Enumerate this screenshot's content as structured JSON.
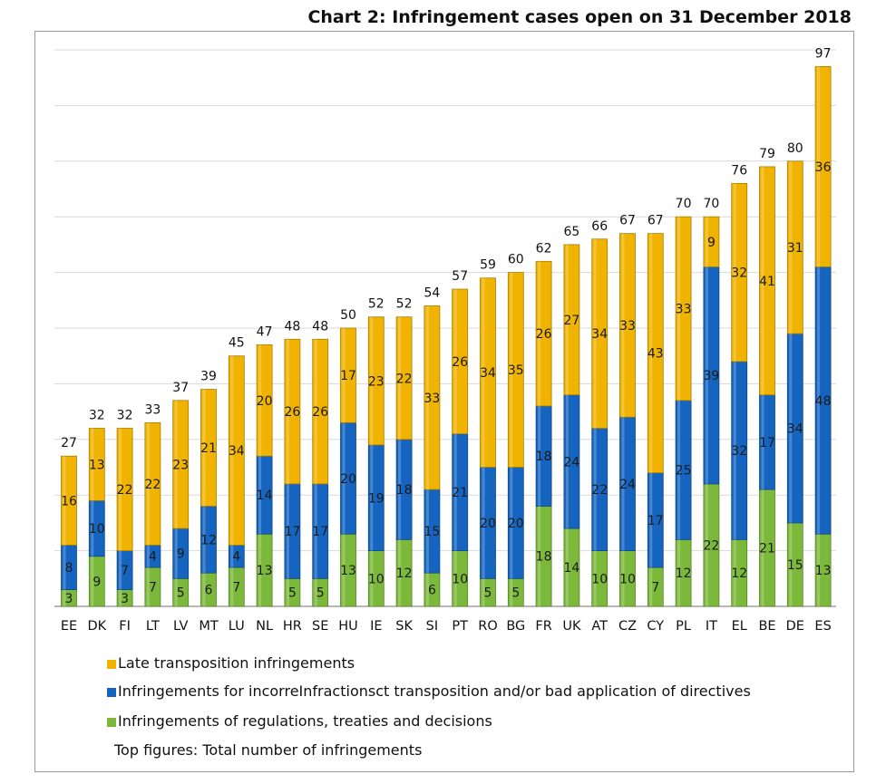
{
  "chart_data": {
    "type": "bar",
    "stacked": true,
    "title": "Chart 2: Infringement cases open on 31 December 2018",
    "categories": [
      "EE",
      "DK",
      "FI",
      "LT",
      "LV",
      "MT",
      "LU",
      "NL",
      "HR",
      "SE",
      "HU",
      "IE",
      "SK",
      "SI",
      "PT",
      "RO",
      "BG",
      "FR",
      "UK",
      "AT",
      "CZ",
      "CY",
      "PL",
      "IT",
      "EL",
      "BE",
      "DE",
      "ES"
    ],
    "series": [
      {
        "name": "Infringements of regulations, treaties and decisions",
        "color": "#7cb93b",
        "values": [
          3,
          9,
          3,
          7,
          5,
          6,
          7,
          13,
          5,
          5,
          13,
          10,
          12,
          6,
          10,
          5,
          5,
          18,
          14,
          10,
          10,
          7,
          12,
          22,
          12,
          21,
          15,
          13
        ]
      },
      {
        "name": "Infringements for incorreInfractionsct transposition and/or bad application of directives",
        "color": "#1565c0",
        "values": [
          8,
          10,
          7,
          4,
          9,
          12,
          4,
          14,
          17,
          17,
          20,
          19,
          18,
          15,
          21,
          20,
          20,
          18,
          24,
          22,
          24,
          17,
          25,
          39,
          32,
          17,
          34,
          48
        ]
      },
      {
        "name": "Late transposition infringements",
        "color": "#f0b400",
        "values": [
          16,
          13,
          22,
          22,
          23,
          21,
          34,
          20,
          26,
          26,
          17,
          23,
          22,
          33,
          26,
          34,
          35,
          26,
          27,
          34,
          33,
          43,
          33,
          9,
          32,
          41,
          31,
          36
        ]
      }
    ],
    "totals": [
      27,
      32,
      32,
      33,
      37,
      39,
      45,
      47,
      48,
      48,
      50,
      52,
      52,
      54,
      57,
      59,
      60,
      62,
      65,
      66,
      67,
      67,
      70,
      70,
      76,
      79,
      80,
      97
    ],
    "ylim": [
      0,
      100
    ],
    "grid": true,
    "legend_position": "bottom-left",
    "note": "Top figures: Total number of infringements"
  },
  "legend": {
    "late": "Late transposition infringements",
    "incorrect": "Infringements for incorreInfractionsct transposition and/or bad application of directives",
    "regs": "Infringements of regulations, treaties and decisions"
  }
}
